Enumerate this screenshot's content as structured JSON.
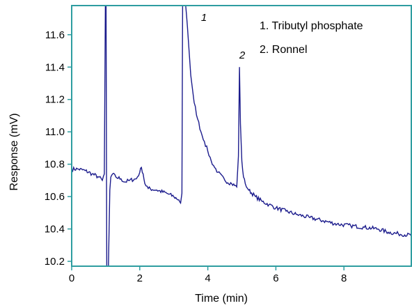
{
  "chart_data": {
    "type": "line",
    "xlabel": "Time (min)",
    "ylabel": "Response (mV)",
    "xlim": [
      0,
      10
    ],
    "ylim": [
      10.17,
      11.78
    ],
    "x_ticks": [
      0,
      2,
      4,
      6,
      8
    ],
    "x_tick_labels": [
      "0",
      "2",
      "4",
      "6",
      "8"
    ],
    "y_ticks": [
      10.2,
      10.4,
      10.6,
      10.8,
      11.0,
      11.2,
      11.4,
      11.6
    ],
    "y_tick_labels": [
      "10.2",
      "10.4",
      "10.6",
      "10.8",
      "11.0",
      "11.2",
      "11.4",
      "11.6"
    ],
    "grid": false,
    "frame_color": "#2e9da0",
    "line_color": "#1b1b8c",
    "marker_color": "#2e8b2e",
    "legend": {
      "placement": "top-right",
      "entries": [
        "1. Tributyl phosphate",
        "2. Ronnel"
      ]
    },
    "peak_labels": [
      {
        "text": "1",
        "x": 3.65
      },
      {
        "text": "2",
        "x": 4.95
      }
    ],
    "series": [
      {
        "x": [
          0.0,
          0.2,
          0.4,
          0.6,
          0.8,
          0.9,
          0.96,
          0.99,
          1.01,
          1.03,
          1.05,
          1.08,
          1.12,
          1.15,
          1.2,
          1.3,
          1.45,
          1.55,
          1.7,
          1.9,
          2.0,
          2.05,
          2.1,
          2.15,
          2.25,
          2.5,
          2.8,
          3.0,
          3.15,
          3.2,
          3.24,
          3.26,
          3.28,
          3.32,
          3.35,
          3.4,
          3.5,
          3.6,
          3.7,
          3.8,
          3.9,
          4.0,
          4.1,
          4.2,
          4.3,
          4.5,
          4.7,
          4.85,
          4.9,
          4.93,
          4.96,
          5.0,
          5.05,
          5.1,
          5.2,
          5.4,
          5.6,
          5.8,
          6.0,
          6.3,
          6.6,
          7.0,
          7.4,
          7.8,
          8.2,
          8.6,
          9.0,
          9.3,
          9.6,
          10.0
        ],
        "y": [
          10.77,
          10.77,
          10.76,
          10.74,
          10.72,
          10.7,
          10.74,
          11.78,
          11.78,
          10.17,
          10.17,
          10.17,
          10.64,
          10.72,
          10.74,
          10.72,
          10.71,
          10.69,
          10.7,
          10.71,
          10.75,
          10.78,
          10.74,
          10.68,
          10.65,
          10.64,
          10.62,
          10.6,
          10.58,
          10.56,
          10.62,
          11.78,
          11.78,
          11.78,
          11.78,
          11.65,
          11.35,
          11.18,
          11.08,
          11.0,
          10.94,
          10.88,
          10.82,
          10.78,
          10.75,
          10.7,
          10.68,
          10.66,
          10.85,
          11.4,
          11.05,
          10.82,
          10.72,
          10.68,
          10.64,
          10.6,
          10.57,
          10.55,
          10.53,
          10.51,
          10.49,
          10.47,
          10.45,
          10.43,
          10.42,
          10.41,
          10.4,
          10.38,
          10.37,
          10.36
        ]
      }
    ]
  }
}
